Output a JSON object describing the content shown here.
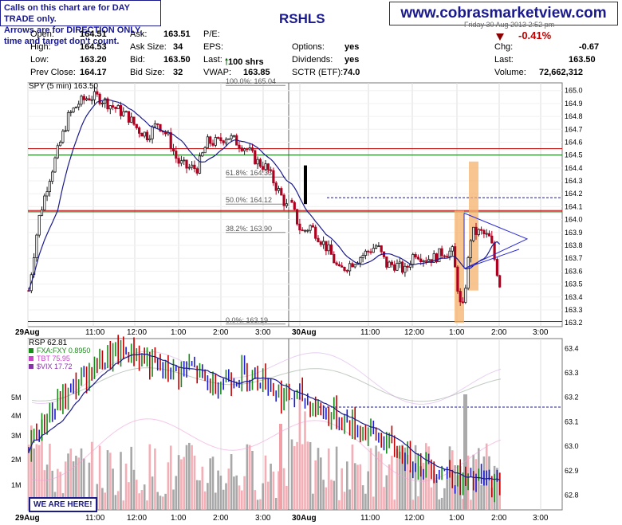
{
  "notice": {
    "line1": "Calls on this chart are for DAY TRADE only.",
    "line2": "Arrows are for DIRECTION ONLY, time and target don't count."
  },
  "website": "www.cobrasmarketview.com",
  "ticker_partial": "RSHLS",
  "date_partial": "Friday  30 Aug 2013  2:52 pm",
  "quote": {
    "open_label": "Open:",
    "open": "164.51",
    "high_label": "High:",
    "high": "164.53",
    "low_label": "Low:",
    "low": "163.20",
    "prev_label": "Prev Close:",
    "prev": "164.17",
    "ask_label": "Ask:",
    "ask": "163.51",
    "asksize_label": "Ask Size:",
    "asksize": "34",
    "bid_label": "Bid:",
    "bid": "163.50",
    "bidsize_label": "Bid Size:",
    "bidsize": "32",
    "pe_label": "P/E:",
    "eps_label": "EPS:",
    "last_label": "Last:",
    "last_trade": "100 shrs",
    "vwap_label": "VWAP:",
    "vwap": "163.85",
    "options_label": "Options:",
    "options": "yes",
    "dividends_label": "Dividends:",
    "dividends": "yes",
    "sctr_label": "SCTR (ETF):",
    "sctr": "74.0",
    "pct_change": "-0.41%",
    "chg_label": "Chg:",
    "chg": "-0.67",
    "last2_label": "Last:",
    "last2": "163.50",
    "volume_label": "Volume:",
    "volume": "72,662,312"
  },
  "colors": {
    "up": "#1a1a1a",
    "down": "#b00020",
    "ma": "#1a1a8c",
    "navy": "#1a1a8c",
    "red_line": "#c00000",
    "green_line": "#006400",
    "highlight": "#f5b26b",
    "triangle": "#2a2ad4",
    "vol_up": "#999999",
    "vol_down": "#f2a0a8"
  },
  "chart_data": [
    {
      "type": "candlestick",
      "title": "SPY (5 min) 163.50",
      "x_ticks": [
        "29Aug",
        "11:00",
        "12:00",
        "1:00",
        "2:00",
        "3:00",
        "30Aug",
        "11:00",
        "12:00",
        "1:00",
        "2:00",
        "3:00"
      ],
      "y_ticks": [
        "165.0",
        "164.9",
        "164.8",
        "164.7",
        "164.6",
        "164.5",
        "164.4",
        "164.3",
        "164.2",
        "164.1",
        "164.0",
        "163.9",
        "163.8",
        "163.7",
        "163.6",
        "163.5",
        "163.4",
        "163.3",
        "163.2"
      ],
      "ylim": [
        163.17,
        165.06
      ],
      "fib_levels": [
        {
          "label": "100.0%: 165.04",
          "value": 165.04
        },
        {
          "label": "61.8%: 164.33",
          "value": 164.33
        },
        {
          "label": "50.0%: 164.12",
          "value": 164.12
        },
        {
          "label": "38.2%: 163.90",
          "value": 163.9
        },
        {
          "label": "0.0%: 163.19",
          "value": 163.19
        }
      ],
      "h_lines": [
        {
          "value": 164.55,
          "style": "red"
        },
        {
          "value": 164.5,
          "style": "green"
        },
        {
          "value": 164.17,
          "style": "navy-dashed"
        },
        {
          "value": 164.07,
          "style": "red"
        },
        {
          "value": 164.06,
          "style": "green"
        },
        {
          "value": 163.21,
          "style": "green"
        }
      ],
      "day1_close": [
        163.45,
        164.0,
        164.3,
        164.55,
        164.8,
        164.9,
        164.95,
        164.95,
        164.9,
        164.85,
        164.8,
        164.7,
        164.65,
        164.75,
        164.65,
        164.45,
        164.4,
        164.4,
        164.6,
        164.6,
        164.65,
        164.6,
        164.55,
        164.45,
        164.4,
        164.25,
        164.1
      ],
      "day2_close": [
        164.1,
        163.9,
        163.95,
        163.85,
        163.75,
        163.6,
        163.65,
        163.7,
        163.75,
        163.8,
        163.65,
        163.65,
        163.6,
        163.75,
        163.7,
        163.7,
        163.75,
        163.75,
        163.25,
        163.9,
        163.9,
        163.85,
        163.5
      ]
    },
    {
      "type": "line",
      "title": "RSP 62.81",
      "legend": [
        "FXA:FXY 0.8950",
        "TBT 75.95",
        "$VIX 17.72"
      ],
      "right_ticks": [
        "63.4",
        "63.3",
        "63.2",
        "63.1",
        "63.0",
        "62.9",
        "62.8"
      ],
      "left_ticks": [
        "5M",
        "4M",
        "3M",
        "2M",
        "1M"
      ],
      "ylim": [
        62.74,
        63.44
      ],
      "dashed_line": 63.16,
      "rsp_close": [
        63.01,
        63.12,
        63.2,
        63.28,
        63.35,
        63.38,
        63.38,
        63.32,
        63.3,
        63.32,
        63.25,
        63.28,
        63.3,
        63.28,
        63.2,
        63.2,
        63.15,
        63.12,
        63.08,
        63.05,
        63.0,
        62.95,
        62.92,
        62.9,
        62.85,
        62.86,
        62.83
      ]
    }
  ],
  "label_here": "WE ARE HERE!"
}
